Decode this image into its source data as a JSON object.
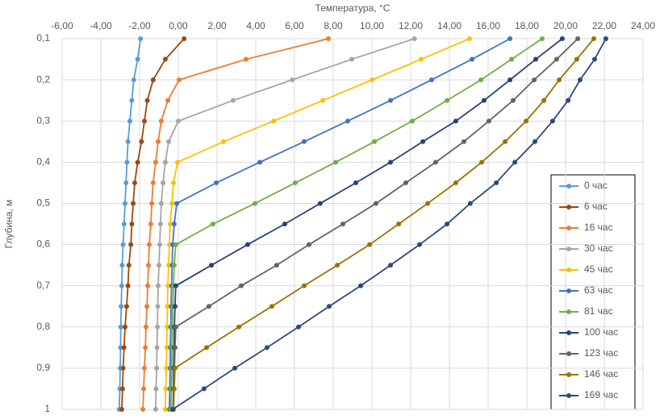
{
  "chart_data": {
    "type": "line",
    "x_label": "Температура, °С",
    "y_label": "Глубина, м",
    "y": [
      0.1,
      0.15,
      0.2,
      0.25,
      0.3,
      0.35,
      0.4,
      0.45,
      0.5,
      0.55,
      0.6,
      0.65,
      0.7,
      0.75,
      0.8,
      0.85,
      0.9,
      0.95,
      1
    ],
    "xlim": [
      -6,
      24
    ],
    "xticks": [
      {
        "value": -6,
        "label": "-6,00"
      },
      {
        "value": -4,
        "label": "-4,00"
      },
      {
        "value": -2,
        "label": "-2,00"
      },
      {
        "value": 0,
        "label": "0,00"
      },
      {
        "value": 2,
        "label": "2,00"
      },
      {
        "value": 4,
        "label": "4,00"
      },
      {
        "value": 6,
        "label": "6,00"
      },
      {
        "value": 8,
        "label": "8,00"
      },
      {
        "value": 10,
        "label": "10,00"
      },
      {
        "value": 12,
        "label": "12,00"
      },
      {
        "value": 14,
        "label": "14,00"
      },
      {
        "value": 16,
        "label": "16,00"
      },
      {
        "value": 18,
        "label": "18,00"
      },
      {
        "value": 20,
        "label": "20,00"
      },
      {
        "value": 22,
        "label": "22,00"
      },
      {
        "value": 24,
        "label": "24,00"
      }
    ],
    "ylim": [
      0.1,
      1
    ],
    "y_inverted": true,
    "yticks": [
      {
        "value": 0.1,
        "label": "0,1"
      },
      {
        "value": 0.2,
        "label": "0,2"
      },
      {
        "value": 0.3,
        "label": "0,3"
      },
      {
        "value": 0.4,
        "label": "0,4"
      },
      {
        "value": 0.5,
        "label": "0,5"
      },
      {
        "value": 0.6,
        "label": "0,6"
      },
      {
        "value": 0.7,
        "label": "0,7"
      },
      {
        "value": 0.8,
        "label": "0,8"
      },
      {
        "value": 0.9,
        "label": "0,9"
      },
      1
    ],
    "grid": true,
    "legend": "right",
    "series": [
      {
        "name": "0 час",
        "color": "#5b9bd5",
        "values": [
          -1.95,
          -2.1,
          -2.3,
          -2.4,
          -2.5,
          -2.6,
          -2.65,
          -2.7,
          -2.75,
          -2.8,
          -2.85,
          -2.9,
          -2.92,
          -2.95,
          -2.97,
          -2.98,
          -3.0,
          -3.02,
          -3.05
        ]
      },
      {
        "name": "6 час",
        "color": "#9e480e",
        "values": [
          0.3,
          -0.67,
          -1.3,
          -1.6,
          -1.75,
          -1.9,
          -2.1,
          -2.25,
          -2.33,
          -2.4,
          -2.45,
          -2.55,
          -2.6,
          -2.67,
          -2.75,
          -2.8,
          -2.85,
          -2.88,
          -2.92
        ]
      },
      {
        "name": "16 час",
        "color": "#ed7d31",
        "values": [
          7.75,
          3.5,
          0.04,
          -0.54,
          -0.88,
          -1.04,
          -1.17,
          -1.3,
          -1.37,
          -1.42,
          -1.5,
          -1.54,
          -1.58,
          -1.62,
          -1.67,
          -1.7,
          -1.75,
          -1.79,
          -1.83
        ]
      },
      {
        "name": "30 час",
        "color": "#a5a5a5",
        "values": [
          12.2,
          8.96,
          5.88,
          2.83,
          0.0,
          -0.5,
          -0.67,
          -0.79,
          -0.88,
          -0.92,
          -0.96,
          -1.0,
          -1.04,
          -1.06,
          -1.08,
          -1.1,
          -1.12,
          -1.15,
          -1.17
        ]
      },
      {
        "name": "45 час",
        "color": "#ffc000",
        "values": [
          15.04,
          12.54,
          10.0,
          7.46,
          4.92,
          2.33,
          -0.04,
          -0.25,
          -0.33,
          -0.42,
          -0.46,
          -0.5,
          -0.54,
          -0.56,
          -0.58,
          -0.6,
          -0.62,
          -0.65,
          -0.67
        ]
      },
      {
        "name": "63 час",
        "color": "#4472c4",
        "values": [
          17.13,
          15.17,
          13.08,
          10.96,
          8.75,
          6.5,
          4.21,
          1.96,
          -0.08,
          -0.21,
          -0.29,
          -0.32,
          -0.35,
          -0.37,
          -0.39,
          -0.41,
          -0.42,
          -0.44,
          -0.46
        ]
      },
      {
        "name": "81 час",
        "color": "#70ad47",
        "values": [
          18.79,
          17.21,
          15.63,
          13.88,
          12.08,
          10.13,
          8.13,
          6.04,
          3.96,
          1.79,
          -0.13,
          -0.21,
          -0.25,
          -0.28,
          -0.3,
          -0.32,
          -0.34,
          -0.36,
          -0.38
        ]
      },
      {
        "name": "100 час",
        "color": "#264478",
        "values": [
          19.83,
          18.46,
          17.13,
          15.79,
          14.33,
          12.63,
          10.96,
          9.17,
          7.33,
          5.5,
          3.58,
          1.71,
          -0.13,
          -0.17,
          -0.2,
          -0.22,
          -0.24,
          -0.25,
          -0.27
        ]
      },
      {
        "name": "123 час",
        "color": "#636363",
        "values": [
          20.63,
          19.54,
          18.38,
          17.29,
          16.04,
          14.75,
          13.29,
          11.75,
          10.21,
          8.5,
          6.75,
          5.08,
          3.25,
          1.58,
          -0.13,
          -0.17,
          -0.2,
          -0.22,
          -0.25
        ]
      },
      {
        "name": "146 час",
        "color": "#997300",
        "values": [
          21.46,
          20.58,
          19.67,
          18.88,
          17.96,
          16.88,
          15.67,
          14.33,
          12.88,
          11.38,
          9.88,
          8.21,
          6.5,
          4.83,
          3.13,
          1.46,
          -0.17,
          -0.21,
          -0.25
        ]
      },
      {
        "name": "169 час",
        "color": "#2b4a7e",
        "values": [
          22.08,
          21.5,
          20.75,
          20.13,
          19.33,
          18.42,
          17.38,
          16.42,
          15.08,
          13.88,
          12.46,
          10.96,
          9.42,
          7.79,
          6.21,
          4.58,
          2.92,
          1.33,
          -0.29
        ]
      }
    ]
  }
}
